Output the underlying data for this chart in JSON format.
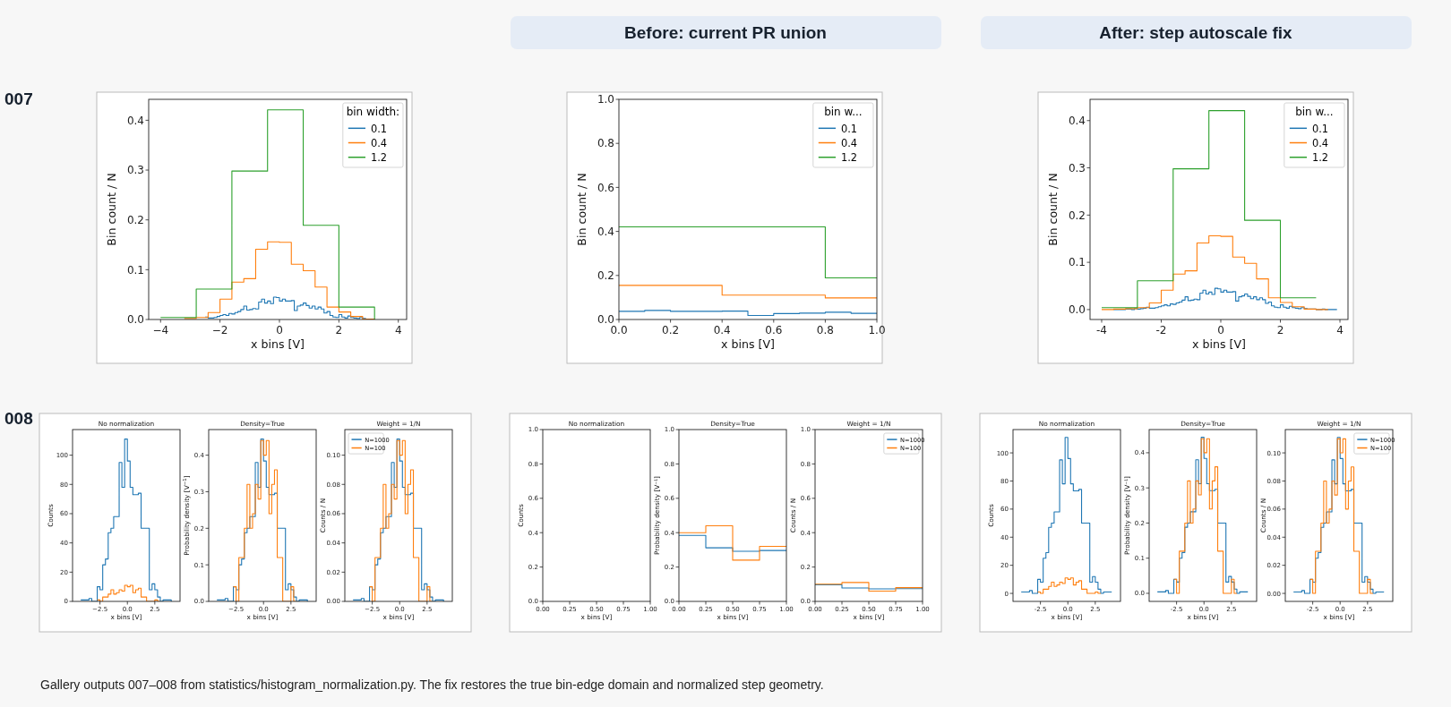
{
  "chart_data": [
    {
      "type": "other",
      "annotations": [
        "Before: current PR union",
        "After: step autoscale fix",
        "007",
        "008",
        "Gallery outputs 007–008 from statistics/histogram_normalization.py. The fix restores the true bin-edge domain and normalized step geometry."
      ]
    },
    {
      "type": "step",
      "xlabel": "x bins [V]",
      "ylabel": "Bin count / N",
      "xlim": [
        -4.4,
        4.28
      ],
      "ylim": [
        0,
        0.442
      ],
      "xticks": [
        {
          "value": -4,
          "label": "−4"
        },
        {
          "value": -2,
          "label": "−2"
        },
        0,
        2,
        4
      ],
      "yticks": [
        {
          "value": 0,
          "label": "0.0"
        },
        0.1,
        0.2,
        0.3,
        0.4
      ],
      "legend": "top right",
      "legend_title": "bin width:",
      "series": [
        {
          "name": "0.1",
          "color": "#1f77b4",
          "x": [
            -2.5,
            -2.4,
            -2.3,
            -2.2,
            -2.1,
            -2,
            -1.9,
            -1.8,
            -1.7,
            -1.6,
            -1.5,
            -1.4,
            -1.3,
            -1.2,
            -1.1,
            -1,
            -0.9,
            -0.8,
            -0.7,
            -0.6,
            -0.5,
            -0.4,
            -0.3,
            -0.2,
            -0.1,
            0,
            0.1,
            0.2,
            0.3,
            0.4,
            0.5,
            0.6,
            0.7,
            0.8,
            0.9,
            1,
            1.1,
            1.2,
            1.3,
            1.4,
            1.5,
            1.6,
            1.7,
            1.8,
            1.9,
            2,
            2.1,
            2.2,
            2.3,
            2.4,
            2.5,
            2.6,
            2.7,
            2.8,
            2.9,
            3,
            3.1
          ],
          "values": [
            0.005,
            0.003,
            0.003,
            0.004,
            0.006,
            0.008,
            0.01,
            0.008,
            0.012,
            0.011,
            0.014,
            0.016,
            0.02,
            0.027,
            0.019,
            0.02,
            0.022,
            0.021,
            0.035,
            0.041,
            0.033,
            0.037,
            0.032,
            0.045,
            0.044,
            0.037,
            0.041,
            0.037,
            0.037,
            0.038,
            0.018,
            0.027,
            0.029,
            0.033,
            0.028,
            0.023,
            0.027,
            0.021,
            0.025,
            0.021,
            0.013,
            0.016,
            0.008,
            0.005,
            0.004,
            0.01,
            0.005,
            0.003,
            0.007,
            0.004,
            0.003,
            0.002,
            0.004,
            0.002,
            0.001,
            0.001,
            0.001
          ]
        },
        {
          "name": "0.4",
          "color": "#ff7f0e",
          "x": [
            -3.2,
            -2.8,
            -2.4,
            -2,
            -1.6,
            -1.2,
            -0.8,
            -0.4,
            0,
            0.4,
            0.8,
            1.2,
            1.6,
            2,
            2.4,
            2.8,
            3.2
          ],
          "values": [
            0.002,
            0.004,
            0.014,
            0.041,
            0.075,
            0.082,
            0.141,
            0.156,
            0.155,
            0.111,
            0.098,
            0.065,
            0.025,
            0.015,
            0.006,
            0.001,
            0
          ]
        },
        {
          "name": "1.2",
          "color": "#2ca02c",
          "x": [
            -4,
            -2.8,
            -1.6,
            -0.4,
            0.8,
            2,
            3.2
          ],
          "values": [
            0.004,
            0.061,
            0.298,
            0.421,
            0.189,
            0.025,
            0
          ]
        }
      ]
    },
    {
      "type": "step",
      "xlabel": "x bins [V]",
      "ylabel": "Bin count / N",
      "xlim": [
        0,
        1
      ],
      "ylim": [
        0,
        1
      ],
      "xticks": [
        {
          "value": 0,
          "label": "0.0"
        },
        0.2,
        0.4,
        0.6,
        0.8,
        {
          "value": 1,
          "label": "1.0"
        }
      ],
      "yticks": [
        {
          "value": 0,
          "label": "0.0"
        },
        0.2,
        0.4,
        0.6,
        0.8,
        {
          "value": 1,
          "label": "1.0"
        }
      ],
      "legend": "top right",
      "legend_title": "bin w...",
      "series": [
        {
          "name": "0.1",
          "color": "#1f77b4",
          "x": [
            0,
            0.1,
            0.2,
            0.3,
            0.4,
            0.5,
            0.6,
            0.7,
            0.8,
            0.9,
            1
          ],
          "values": [
            0.037,
            0.041,
            0.037,
            0.037,
            0.038,
            0.018,
            0.027,
            0.029,
            0.033,
            0.028,
            0.028
          ]
        },
        {
          "name": "0.4",
          "color": "#ff7f0e",
          "x": [
            0,
            0.4,
            0.8,
            1
          ],
          "values": [
            0.155,
            0.111,
            0.098,
            0.098
          ]
        },
        {
          "name": "1.2",
          "color": "#2ca02c",
          "x": [
            0,
            0.8,
            1
          ],
          "values": [
            0.421,
            0.189,
            0.189
          ]
        }
      ]
    },
    {
      "type": "step",
      "xlabel": "x bins [V]",
      "ylabel": "Bin count / N",
      "xlim": [
        -4.39,
        4.27
      ],
      "ylim": [
        -0.021,
        0.445
      ],
      "xticks": [
        -4,
        -2,
        0,
        2,
        4
      ],
      "yticks": [
        {
          "value": 0,
          "label": "0.0"
        },
        0.1,
        0.2,
        0.3,
        0.4
      ],
      "legend": "top right",
      "legend_title": "bin w...",
      "series": [
        {
          "name": "0.1",
          "color": "#1f77b4",
          "x": [
            -3.6,
            -3.5,
            -3.4,
            -3.3,
            -3.2,
            -3.1,
            -3,
            -2.9,
            -2.8,
            -2.7,
            -2.6,
            -2.5,
            -2.4,
            -2.3,
            -2.2,
            -2.1,
            -2,
            -1.9,
            -1.8,
            -1.7,
            -1.6,
            -1.5,
            -1.4,
            -1.3,
            -1.2,
            -1.1,
            -1,
            -0.9,
            -0.8,
            -0.7,
            -0.6,
            -0.5,
            -0.4,
            -0.3,
            -0.2,
            -0.1,
            0,
            0.1,
            0.2,
            0.3,
            0.4,
            0.5,
            0.6,
            0.7,
            0.8,
            0.9,
            1,
            1.1,
            1.2,
            1.3,
            1.4,
            1.5,
            1.6,
            1.7,
            1.8,
            1.9,
            2,
            2.1,
            2.2,
            2.3,
            2.4,
            2.5,
            2.6,
            2.7,
            2.8,
            2.9,
            3,
            3.1,
            3.2,
            3.3,
            3.4,
            3.5,
            3.6,
            3.7,
            3.8,
            3.9
          ],
          "values": [
            0,
            0,
            0,
            0,
            0.001,
            0.001,
            0,
            0.002,
            0.001,
            0.002,
            0.003,
            0.005,
            0.003,
            0.003,
            0.004,
            0.006,
            0.008,
            0.01,
            0.008,
            0.012,
            0.011,
            0.014,
            0.016,
            0.02,
            0.027,
            0.019,
            0.02,
            0.022,
            0.021,
            0.035,
            0.041,
            0.033,
            0.037,
            0.032,
            0.045,
            0.044,
            0.037,
            0.041,
            0.037,
            0.037,
            0.038,
            0.018,
            0.027,
            0.029,
            0.033,
            0.028,
            0.023,
            0.027,
            0.021,
            0.025,
            0.021,
            0.013,
            0.016,
            0.008,
            0.005,
            0.004,
            0.01,
            0.005,
            0.003,
            0.007,
            0.004,
            0.003,
            0.002,
            0.004,
            0.002,
            0.001,
            0.001,
            0.001,
            0,
            0,
            0.001,
            0,
            0,
            0,
            0,
            0
          ]
        },
        {
          "name": "0.4",
          "color": "#ff7f0e",
          "x": [
            -4,
            -3.6,
            -3.2,
            -2.8,
            -2.4,
            -2,
            -1.6,
            -1.2,
            -0.8,
            -0.4,
            0,
            0.4,
            0.8,
            1.2,
            1.6,
            2,
            2.4,
            2.8,
            3.2,
            3.6
          ],
          "values": [
            0,
            0.001,
            0.002,
            0.004,
            0.014,
            0.041,
            0.075,
            0.082,
            0.141,
            0.156,
            0.155,
            0.111,
            0.098,
            0.065,
            0.025,
            0.015,
            0.006,
            0.001,
            0,
            0
          ]
        },
        {
          "name": "1.2",
          "color": "#2ca02c",
          "x": [
            -4,
            -2.8,
            -1.6,
            -0.4,
            0.8,
            2,
            3.2
          ],
          "values": [
            0.004,
            0.061,
            0.298,
            0.421,
            0.189,
            0.025,
            0.025
          ]
        }
      ]
    },
    {
      "type": "step",
      "title": "No normalization",
      "xlabel": "x bins [V]",
      "ylabel": "Counts",
      "xlim": [
        -5,
        4.8
      ],
      "ylim": [
        0,
        117.5
      ],
      "xticks": [
        {
          "value": -2.5,
          "label": "−2.5"
        },
        {
          "value": 0,
          "label": "0.0"
        },
        2.5
      ],
      "yticks": [
        0,
        20,
        40,
        60,
        80,
        100
      ],
      "series": [
        {
          "color": "#1f77b4",
          "x": [
            -4.25,
            -4,
            -3.75,
            -3.5,
            -3.25,
            -3,
            -2.75,
            -2.5,
            -2.25,
            -2,
            -1.75,
            -1.5,
            -1.25,
            -1,
            -0.75,
            -0.5,
            -0.25,
            0,
            0.25,
            0.5,
            0.75,
            1,
            1.25,
            1.5,
            1.75,
            2,
            2.25,
            2.5,
            2.75,
            3,
            3.25,
            3.5,
            3.75,
            4
          ],
          "values": [
            1,
            1,
            1,
            2,
            0,
            0,
            10,
            8,
            25,
            29,
            47,
            50,
            58,
            58,
            95,
            78,
            111,
            96,
            78,
            73,
            73,
            74,
            50,
            50,
            50,
            8,
            12,
            8,
            3,
            0,
            1,
            1,
            1,
            0
          ]
        },
        {
          "color": "#ff7f0e",
          "x": [
            -2.75,
            -2.5,
            -2.25,
            -2,
            -1.75,
            -1.5,
            -1.25,
            -1,
            -0.75,
            -0.5,
            -0.25,
            0,
            0.25,
            0.5,
            0.75,
            1,
            1.25,
            1.5,
            1.75,
            2,
            2.25,
            2.5,
            2.75,
            3
          ],
          "values": [
            1,
            0,
            3,
            3,
            5,
            8,
            5,
            6,
            8,
            7,
            11,
            10,
            11,
            6,
            8,
            9,
            3,
            3,
            0,
            0,
            0,
            1,
            0,
            0
          ]
        }
      ]
    },
    {
      "type": "step",
      "title": "Density=True",
      "xlabel": "x bins [V]",
      "ylabel": "Probability density [V$^{−1}$]",
      "xlim": [
        -5,
        4.8
      ],
      "ylim": [
        0,
        0.47
      ],
      "xticks": [
        {
          "value": -2.5,
          "label": "−2.5"
        },
        {
          "value": 0,
          "label": "0.0"
        },
        2.5
      ],
      "yticks": [
        {
          "value": 0,
          "label": "0.0"
        },
        0.1,
        0.2,
        0.3,
        0.4
      ],
      "series": [
        {
          "color": "#1f77b4",
          "x": [
            -4.25,
            -4,
            -3.75,
            -3.5,
            -3.25,
            -3,
            -2.75,
            -2.5,
            -2.25,
            -2,
            -1.75,
            -1.5,
            -1.25,
            -1,
            -0.75,
            -0.5,
            -0.25,
            0,
            0.25,
            0.5,
            0.75,
            1,
            1.25,
            1.5,
            1.75,
            2,
            2.25,
            2.5,
            2.75,
            3,
            3.25,
            3.5,
            3.75,
            4
          ],
          "values": [
            0.004,
            0.004,
            0.004,
            0.008,
            0,
            0,
            0.04,
            0.032,
            0.1,
            0.116,
            0.188,
            0.2,
            0.232,
            0.232,
            0.38,
            0.312,
            0.444,
            0.384,
            0.312,
            0.292,
            0.292,
            0.296,
            0.2,
            0.2,
            0.2,
            0.032,
            0.048,
            0.032,
            0.012,
            0,
            0.004,
            0.004,
            0.004,
            0
          ]
        },
        {
          "color": "#ff7f0e",
          "x": [
            -2.75,
            -2.5,
            -2.25,
            -2,
            -1.75,
            -1.5,
            -1.25,
            -1,
            -0.75,
            -0.5,
            -0.25,
            0,
            0.25,
            0.5,
            0.75,
            1,
            1.25,
            1.5,
            1.75,
            2,
            2.25,
            2.5,
            2.75,
            3
          ],
          "values": [
            0.04,
            0,
            0.12,
            0.12,
            0.2,
            0.32,
            0.2,
            0.24,
            0.32,
            0.28,
            0.44,
            0.4,
            0.44,
            0.24,
            0.32,
            0.36,
            0.12,
            0.12,
            0,
            0,
            0,
            0.04,
            0,
            0
          ]
        }
      ]
    },
    {
      "type": "step",
      "title": "Weight = 1/N",
      "xlabel": "x bins [V]",
      "ylabel": "Counts / N",
      "xlim": [
        -5,
        4.8
      ],
      "ylim": [
        0,
        0.1175
      ],
      "xticks": [
        {
          "value": -2.5,
          "label": "−2.5"
        },
        {
          "value": 0,
          "label": "0.0"
        },
        2.5
      ],
      "yticks": [
        {
          "value": 0,
          "label": "0.00"
        },
        {
          "value": 0.02,
          "label": "0.02"
        },
        {
          "value": 0.04,
          "label": "0.04"
        },
        {
          "value": 0.06,
          "label": "0.06"
        },
        {
          "value": 0.08,
          "label": "0.08"
        },
        {
          "value": 0.1,
          "label": "0.10"
        }
      ],
      "legend": "top left",
      "series": [
        {
          "name": "N=1000",
          "color": "#1f77b4",
          "x": [
            -4.25,
            -4,
            -3.75,
            -3.5,
            -3.25,
            -3,
            -2.75,
            -2.5,
            -2.25,
            -2,
            -1.75,
            -1.5,
            -1.25,
            -1,
            -0.75,
            -0.5,
            -0.25,
            0,
            0.25,
            0.5,
            0.75,
            1,
            1.25,
            1.5,
            1.75,
            2,
            2.25,
            2.5,
            2.75,
            3,
            3.25,
            3.5,
            3.75,
            4
          ],
          "values": [
            0.001,
            0.001,
            0.001,
            0.002,
            0,
            0,
            0.01,
            0.008,
            0.025,
            0.029,
            0.047,
            0.05,
            0.058,
            0.058,
            0.095,
            0.078,
            0.111,
            0.096,
            0.078,
            0.073,
            0.073,
            0.074,
            0.05,
            0.05,
            0.05,
            0.008,
            0.012,
            0.008,
            0.003,
            0,
            0.001,
            0.001,
            0.001,
            0
          ]
        },
        {
          "name": "N=100",
          "color": "#ff7f0e",
          "x": [
            -2.75,
            -2.5,
            -2.25,
            -2,
            -1.75,
            -1.5,
            -1.25,
            -1,
            -0.75,
            -0.5,
            -0.25,
            0,
            0.25,
            0.5,
            0.75,
            1,
            1.25,
            1.5,
            1.75,
            2,
            2.25,
            2.5,
            2.75,
            3
          ],
          "values": [
            0.01,
            0,
            0.03,
            0.03,
            0.05,
            0.08,
            0.05,
            0.06,
            0.08,
            0.07,
            0.11,
            0.1,
            0.11,
            0.06,
            0.08,
            0.09,
            0.03,
            0.03,
            0,
            0,
            0,
            0.01,
            0,
            0
          ]
        }
      ]
    },
    {
      "type": "step",
      "title": "No normalization",
      "xlabel": "x bins [V]",
      "ylabel": "Counts",
      "xlim": [
        0,
        1
      ],
      "ylim": [
        0,
        1
      ],
      "xticks": [
        {
          "value": 0,
          "label": "0.00"
        },
        0.25,
        {
          "value": 0.5,
          "label": "0.50"
        },
        0.75,
        {
          "value": 1,
          "label": "1.00"
        }
      ],
      "yticks": [
        {
          "value": 0,
          "label": "0.0"
        },
        0.2,
        0.4,
        0.6,
        0.8,
        {
          "value": 1,
          "label": "1.0"
        }
      ]
    },
    {
      "type": "step",
      "title": "Density=True",
      "xlabel": "x bins [V]",
      "ylabel": "Probability density [V⁻¹]",
      "xlim": [
        0,
        1
      ],
      "ylim": [
        0,
        1
      ],
      "xticks": [
        {
          "value": 0,
          "label": "0.00"
        },
        0.25,
        {
          "value": 0.5,
          "label": "0.50"
        },
        0.75,
        {
          "value": 1,
          "label": "1.00"
        }
      ],
      "yticks": [
        {
          "value": 0,
          "label": "0.0"
        },
        0.2,
        0.4,
        0.6,
        0.8,
        {
          "value": 1,
          "label": "1.0"
        }
      ],
      "series": [
        {
          "color": "#1f77b4",
          "x": [
            0,
            0.25,
            0.5,
            0.75,
            1
          ],
          "values": [
            0.384,
            0.312,
            0.292,
            0.296,
            0.296
          ]
        },
        {
          "color": "#ff7f0e",
          "x": [
            0,
            0.25,
            0.5,
            0.75,
            1
          ],
          "values": [
            0.4,
            0.44,
            0.24,
            0.32,
            0.32
          ]
        }
      ]
    },
    {
      "type": "step",
      "title": "Weight = 1/N",
      "xlabel": "x bins [V]",
      "ylabel": "Counts / N",
      "xlim": [
        0,
        1
      ],
      "ylim": [
        0,
        1
      ],
      "xticks": [
        {
          "value": 0,
          "label": "0.00"
        },
        0.25,
        {
          "value": 0.5,
          "label": "0.50"
        },
        0.75,
        {
          "value": 1,
          "label": "1.00"
        }
      ],
      "yticks": [
        {
          "value": 0,
          "label": "0.0"
        },
        0.2,
        0.4,
        0.6,
        0.8,
        {
          "value": 1,
          "label": "1.0"
        }
      ],
      "legend": "top right",
      "series": [
        {
          "name": "N=1000",
          "color": "#1f77b4",
          "x": [
            0,
            0.25,
            0.5,
            0.75,
            1
          ],
          "values": [
            0.096,
            0.078,
            0.073,
            0.074,
            0.074
          ]
        },
        {
          "name": "N=100",
          "color": "#ff7f0e",
          "x": [
            0,
            0.25,
            0.5,
            0.75,
            1
          ],
          "values": [
            0.1,
            0.11,
            0.06,
            0.08,
            0.08
          ]
        }
      ]
    },
    {
      "type": "step",
      "title": "No normalization",
      "xlabel": "x bins [V]",
      "ylabel": "Counts",
      "xlim": [
        -5,
        4.8
      ],
      "ylim": [
        -5.7,
        116.6
      ],
      "xticks": [
        -2.5,
        {
          "value": 0,
          "label": "0.0"
        },
        2.5
      ],
      "yticks": [
        0,
        20,
        40,
        60,
        80,
        100
      ],
      "series": [
        {
          "color": "#1f77b4",
          "x": [
            -4.25,
            -4,
            -3.75,
            -3.5,
            -3.25,
            -3,
            -2.75,
            -2.5,
            -2.25,
            -2,
            -1.75,
            -1.5,
            -1.25,
            -1,
            -0.75,
            -0.5,
            -0.25,
            0,
            0.25,
            0.5,
            0.75,
            1,
            1.25,
            1.5,
            1.75,
            2,
            2.25,
            2.5,
            2.75,
            3,
            3.25,
            3.5,
            3.75,
            4
          ],
          "values": [
            1,
            1,
            1,
            2,
            0,
            0,
            10,
            8,
            25,
            29,
            47,
            50,
            58,
            58,
            95,
            78,
            111,
            96,
            78,
            73,
            73,
            74,
            50,
            50,
            50,
            8,
            12,
            8,
            3,
            0,
            1,
            1,
            1,
            1
          ]
        },
        {
          "color": "#ff7f0e",
          "x": [
            -2.75,
            -2.5,
            -2.25,
            -2,
            -1.75,
            -1.5,
            -1.25,
            -1,
            -0.75,
            -0.5,
            -0.25,
            0,
            0.25,
            0.5,
            0.75,
            1,
            1.25,
            1.5,
            1.75,
            2,
            2.25,
            2.5,
            2.75,
            3
          ],
          "values": [
            1,
            0,
            3,
            3,
            5,
            8,
            5,
            6,
            8,
            7,
            11,
            10,
            11,
            6,
            8,
            9,
            3,
            3,
            0,
            0,
            0,
            1,
            0,
            0
          ]
        }
      ]
    },
    {
      "type": "step",
      "title": "Density=True",
      "xlabel": "x bins [V]",
      "ylabel": "Probability density [V⁻¹]",
      "xlim": [
        -5,
        4.8
      ],
      "ylim": [
        -0.023,
        0.466
      ],
      "xticks": [
        -2.5,
        {
          "value": 0,
          "label": "0.0"
        },
        2.5
      ],
      "yticks": [
        {
          "value": 0,
          "label": "0.0"
        },
        0.1,
        0.2,
        0.3,
        0.4
      ],
      "series": [
        {
          "color": "#1f77b4",
          "x": [
            -4.25,
            -4,
            -3.75,
            -3.5,
            -3.25,
            -3,
            -2.75,
            -2.5,
            -2.25,
            -2,
            -1.75,
            -1.5,
            -1.25,
            -1,
            -0.75,
            -0.5,
            -0.25,
            0,
            0.25,
            0.5,
            0.75,
            1,
            1.25,
            1.5,
            1.75,
            2,
            2.25,
            2.5,
            2.75,
            3,
            3.25,
            3.5,
            3.75,
            4
          ],
          "values": [
            0.004,
            0.004,
            0.004,
            0.008,
            0,
            0,
            0.04,
            0.032,
            0.1,
            0.116,
            0.188,
            0.2,
            0.232,
            0.232,
            0.38,
            0.312,
            0.444,
            0.384,
            0.312,
            0.292,
            0.292,
            0.296,
            0.2,
            0.2,
            0.2,
            0.032,
            0.048,
            0.032,
            0.012,
            0,
            0.004,
            0.004,
            0.004,
            0.004
          ]
        },
        {
          "color": "#ff7f0e",
          "x": [
            -2.75,
            -2.5,
            -2.25,
            -2,
            -1.75,
            -1.5,
            -1.25,
            -1,
            -0.75,
            -0.5,
            -0.25,
            0,
            0.25,
            0.5,
            0.75,
            1,
            1.25,
            1.5,
            1.75,
            2,
            2.25,
            2.5,
            2.75,
            3
          ],
          "values": [
            0.04,
            0,
            0.12,
            0.12,
            0.2,
            0.32,
            0.2,
            0.24,
            0.32,
            0.28,
            0.44,
            0.4,
            0.44,
            0.24,
            0.32,
            0.36,
            0.12,
            0.12,
            0,
            0,
            0,
            0.04,
            0,
            0
          ]
        }
      ]
    },
    {
      "type": "step",
      "title": "Weight = 1/N",
      "xlabel": "x bins [V]",
      "ylabel": "Counts / N",
      "xlim": [
        -5,
        4.8
      ],
      "ylim": [
        -0.0057,
        0.1166
      ],
      "xticks": [
        -2.5,
        {
          "value": 0,
          "label": "0.0"
        },
        2.5
      ],
      "yticks": [
        {
          "value": 0,
          "label": "0.00"
        },
        {
          "value": 0.02,
          "label": "0.02"
        },
        {
          "value": 0.04,
          "label": "0.04"
        },
        {
          "value": 0.06,
          "label": "0.06"
        },
        {
          "value": 0.08,
          "label": "0.08"
        },
        {
          "value": 0.1,
          "label": "0.10"
        }
      ],
      "legend": "top right",
      "series": [
        {
          "name": "N=1000",
          "color": "#1f77b4",
          "x": [
            -4.25,
            -4,
            -3.75,
            -3.5,
            -3.25,
            -3,
            -2.75,
            -2.5,
            -2.25,
            -2,
            -1.75,
            -1.5,
            -1.25,
            -1,
            -0.75,
            -0.5,
            -0.25,
            0,
            0.25,
            0.5,
            0.75,
            1,
            1.25,
            1.5,
            1.75,
            2,
            2.25,
            2.5,
            2.75,
            3,
            3.25,
            3.5,
            3.75,
            4
          ],
          "values": [
            0.001,
            0.001,
            0.001,
            0.002,
            0,
            0,
            0.01,
            0.008,
            0.025,
            0.029,
            0.047,
            0.05,
            0.058,
            0.058,
            0.095,
            0.078,
            0.111,
            0.096,
            0.078,
            0.073,
            0.073,
            0.074,
            0.05,
            0.05,
            0.05,
            0.008,
            0.012,
            0.008,
            0.003,
            0,
            0.001,
            0.001,
            0.001,
            0.001
          ]
        },
        {
          "name": "N=100",
          "color": "#ff7f0e",
          "x": [
            -2.75,
            -2.5,
            -2.25,
            -2,
            -1.75,
            -1.5,
            -1.25,
            -1,
            -0.75,
            -0.5,
            -0.25,
            0,
            0.25,
            0.5,
            0.75,
            1,
            1.25,
            1.5,
            1.75,
            2,
            2.25,
            2.5,
            2.75,
            3
          ],
          "values": [
            0.01,
            0,
            0.03,
            0.03,
            0.05,
            0.08,
            0.05,
            0.06,
            0.08,
            0.07,
            0.11,
            0.1,
            0.11,
            0.06,
            0.08,
            0.09,
            0.03,
            0.03,
            0,
            0,
            0,
            0.01,
            0,
            0
          ]
        }
      ]
    }
  ]
}
